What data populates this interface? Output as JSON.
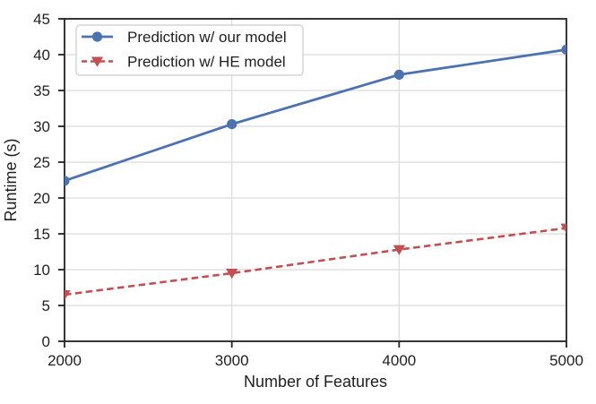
{
  "chart_data": {
    "type": "line",
    "title": "",
    "xlabel": "Number of Features",
    "ylabel": "Runtime (s)",
    "x": [
      2000,
      3000,
      4000,
      5000
    ],
    "x_tick_labels": [
      "2000",
      "3000",
      "4000",
      "5000"
    ],
    "y_ticks": [
      0,
      5,
      10,
      15,
      20,
      25,
      30,
      35,
      40,
      45
    ],
    "y_tick_labels": [
      "0",
      "5",
      "10",
      "15",
      "20",
      "25",
      "30",
      "35",
      "40",
      "45"
    ],
    "xlim": [
      2000,
      5000
    ],
    "ylim": [
      0,
      45
    ],
    "grid": true,
    "legend_position": "upper-left",
    "series": [
      {
        "name": "Prediction w/ our model",
        "values": [
          22.4,
          30.3,
          37.2,
          40.7
        ],
        "color": "#4C72B0",
        "line_style": "solid",
        "marker": "circle"
      },
      {
        "name": "Prediction w/ HE model",
        "values": [
          6.5,
          9.5,
          12.8,
          15.8
        ],
        "color": "#C44E52",
        "line_style": "dashed",
        "marker": "triangle-down"
      }
    ],
    "colors": {
      "grid": "#d9d9d9",
      "spine": "#222222",
      "text": "#1f1f1f",
      "legend_border": "#cccccc",
      "legend_background": "#ffffff",
      "plot_background": "#ffffff"
    }
  }
}
